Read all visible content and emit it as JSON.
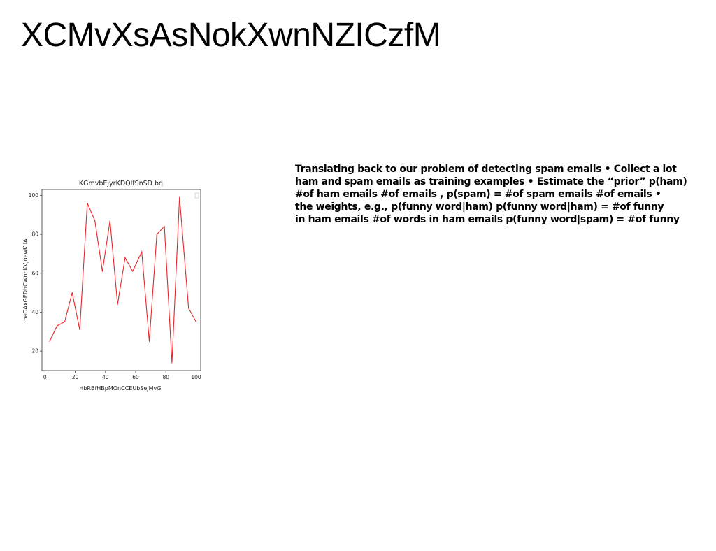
{
  "slide": {
    "title": "XCMvXsAsNokXwnNZICzfM",
    "body_lines": [
      "Translating back to our problem of detecting spam emails • Collect a lot",
      "ham and spam emails as training examples • Estimate the “prior” p(ham)",
      "#of ham emails #of emails , p(spam) = #of spam emails #of emails •",
      "the weights, e.g., p(funny word|ham) p(funny word|ham) = #of funny",
      "in ham emails #of words in ham emails p(funny word|spam) = #of funny"
    ]
  },
  "chart_data": {
    "type": "line",
    "title": "KGmvbEjyrKDQlfSnSD bq",
    "xlabel": "HbRBfHBpMOnCCEUbSeJMvGi",
    "ylabel": "oaOAxGEDhCWnoKVJoewK IA",
    "xlim": [
      -2,
      103
    ],
    "ylim": [
      10,
      103
    ],
    "x_ticks": [
      0,
      20,
      40,
      60,
      80,
      100
    ],
    "y_ticks": [
      20,
      40,
      60,
      80,
      100
    ],
    "grid": false,
    "legend": "top-right (empty)",
    "series": [
      {
        "color": "#e8262a",
        "x": [
          3,
          8,
          13,
          18,
          23,
          28,
          33,
          38,
          43,
          48,
          53,
          58,
          64,
          69,
          74,
          79,
          84,
          89,
          95,
          100
        ],
        "y": [
          25,
          33,
          35,
          50,
          31,
          96,
          87,
          61,
          87,
          44,
          68,
          61,
          71,
          25,
          80,
          84,
          14,
          99,
          42,
          35
        ]
      }
    ]
  }
}
